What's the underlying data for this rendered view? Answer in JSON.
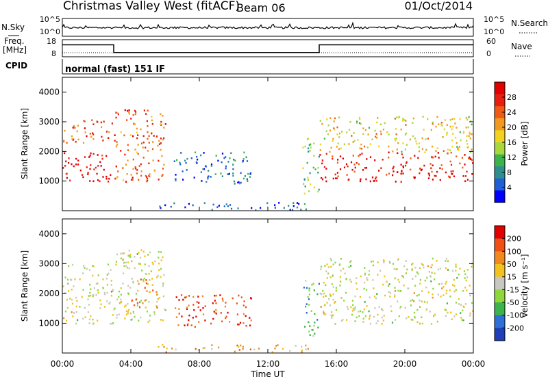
{
  "header": {
    "title": "Christmas Valley West (fitACF)",
    "beam": "Beam 06",
    "date": "01/Oct/2014"
  },
  "top_panels": {
    "nsky_label": "N.Sky",
    "nsearch_label": "N.Search",
    "noise_ticks": [
      "10^5",
      "10^0"
    ],
    "freq_label_1": "Freq.",
    "freq_label_2": "[MHz]",
    "freq_ticks": [
      "18",
      "8"
    ],
    "nave_label": "Nave",
    "nave_ticks": [
      "60",
      "0"
    ],
    "cpid_label": "CPID",
    "cpid_text": "normal (fast) 151 IF",
    "freq_steps": [
      {
        "start_hr": 0,
        "end_hr": 3,
        "mhz": 15
      },
      {
        "start_hr": 3,
        "end_hr": 15,
        "mhz": 10.5
      },
      {
        "start_hr": 15,
        "end_hr": 24,
        "mhz": 15
      }
    ]
  },
  "chart_data": [
    {
      "type": "heatmap",
      "parameter": "Power",
      "xlabel": "",
      "ylabel": "Slant Range [km]",
      "xlim": [
        0,
        24
      ],
      "ylim": [
        0,
        4500
      ],
      "yticks": [
        "1000",
        "2000",
        "3000",
        "4000"
      ],
      "colorbar": {
        "label": "Power [dB]",
        "ticks": [
          "4",
          "8",
          "12",
          "16",
          "20",
          "24",
          "28"
        ],
        "colors": [
          "#0000ff",
          "#1f5fd8",
          "#2f8f8f",
          "#3cb44b",
          "#a8d83c",
          "#f2d21e",
          "#f29a1e",
          "#f05a14",
          "#e81e10",
          "#e00000"
        ]
      },
      "regions": [
        {
          "t0": 0.0,
          "t1": 3.0,
          "r0": 1000,
          "r1": 2000,
          "level": 0.95
        },
        {
          "t0": 0.0,
          "t1": 3.0,
          "r0": 2300,
          "r1": 3100,
          "level": 0.8
        },
        {
          "t0": 3.0,
          "t1": 6.0,
          "r0": 1000,
          "r1": 3500,
          "level": 0.75
        },
        {
          "t0": 6.5,
          "t1": 11.0,
          "r0": 900,
          "r1": 2000,
          "level": 0.2
        },
        {
          "t0": 14.0,
          "t1": 15.0,
          "r0": 600,
          "r1": 2500,
          "level": 0.4
        },
        {
          "t0": 15.0,
          "t1": 24.0,
          "r0": 1000,
          "r1": 2000,
          "level": 0.9
        },
        {
          "t0": 15.0,
          "t1": 24.0,
          "r0": 2000,
          "r1": 3200,
          "level": 0.55
        },
        {
          "t0": 5.5,
          "t1": 14.5,
          "r0": 50,
          "r1": 300,
          "level": 0.15
        }
      ]
    },
    {
      "type": "heatmap",
      "parameter": "Velocity",
      "xlabel": "Time UT",
      "ylabel": "Slant Range [km]",
      "xlim": [
        0,
        24
      ],
      "ylim": [
        0,
        4500
      ],
      "yticks": [
        "1000",
        "2000",
        "3000",
        "4000"
      ],
      "xticks": [
        "00:00",
        "04:00",
        "08:00",
        "12:00",
        "16:00",
        "20:00",
        "00:00"
      ],
      "colorbar": {
        "label": "Velocity [m s⁻¹]",
        "ticks": [
          "200",
          "100",
          "50",
          "15",
          "-15",
          "-50",
          "-100",
          "-200"
        ],
        "colors": [
          "#1f3fb8",
          "#2f6fd8",
          "#3cb44b",
          "#8fd83c",
          "#c8c8c0",
          "#f2c21e",
          "#f2891e",
          "#f05014",
          "#e00000"
        ]
      },
      "regions": [
        {
          "t0": 0.0,
          "t1": 3.0,
          "r0": 1000,
          "r1": 3000,
          "level": 0.5
        },
        {
          "t0": 3.0,
          "t1": 6.0,
          "r0": 1000,
          "r1": 3500,
          "level": 0.5
        },
        {
          "t0": 4.0,
          "t1": 5.5,
          "r0": 1500,
          "r1": 2500,
          "level": 0.7
        },
        {
          "t0": 6.5,
          "t1": 11.0,
          "r0": 900,
          "r1": 2000,
          "level": 0.85
        },
        {
          "t0": 14.0,
          "t1": 15.0,
          "r0": 600,
          "r1": 2500,
          "level": 0.3
        },
        {
          "t0": 15.0,
          "t1": 24.0,
          "r0": 1000,
          "r1": 3200,
          "level": 0.5
        },
        {
          "t0": 5.5,
          "t1": 14.5,
          "r0": 50,
          "r1": 300,
          "level": 0.65
        }
      ]
    }
  ]
}
